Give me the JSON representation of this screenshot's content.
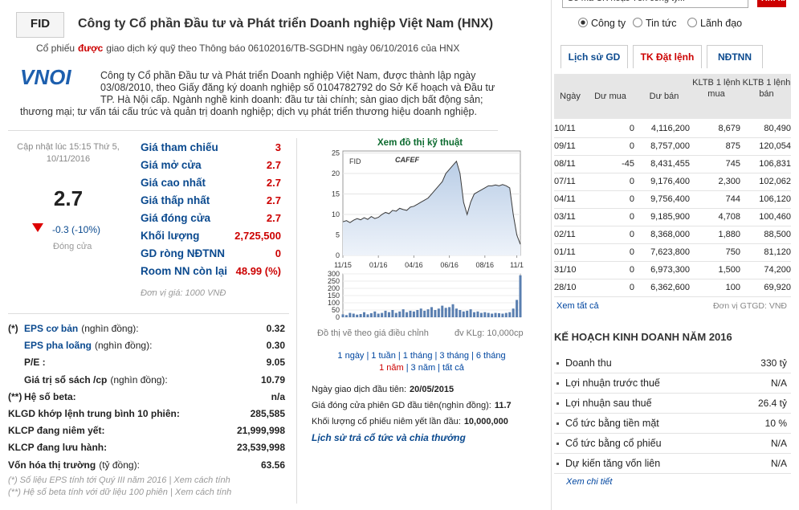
{
  "header": {
    "code": "FID",
    "title": "Công ty Cổ phần Đầu tư và Phát triển Doanh nghiệp Việt Nam (HNX)",
    "subtitle_pre": "Cổ phiếu",
    "subtitle_em": "được",
    "subtitle_post": "giao dịch ký quỹ theo Thông báo 06102016/TB-SGDHN ngày 06/10/2016 của HNX"
  },
  "logo": "VNOI",
  "description": "Công ty Cổ phần Đầu tư và Phát triển Doanh nghiệp Việt Nam, được thành lập ngày 03/08/2010, theo Giấy đăng ký doanh nghiệp số 0104782792 do Sở Kế hoạch và Đầu tư TP. Hà Nội cấp. Ngành nghề kinh doanh: đầu tư tài chính; sàn giao dịch bất động sản; thương mại; tư vấn tái cấu trúc và quản trị doanh nghiệp; dịch vụ phát triển thương hiệu doanh nghiệp.",
  "quote": {
    "updated": "Cập nhật lúc 15:15 Thứ 5, 10/11/2016",
    "price": "2.7",
    "change": "-0.3 (-10%)",
    "close_label": "Đóng cửa"
  },
  "prices": [
    {
      "label": "Giá tham chiếu",
      "value": "3"
    },
    {
      "label": "Giá mở cửa",
      "value": "2.7"
    },
    {
      "label": "Giá cao nhất",
      "value": "2.7"
    },
    {
      "label": "Giá thấp nhất",
      "value": "2.7"
    },
    {
      "label": "Giá đóng cửa",
      "value": "2.7"
    },
    {
      "label": "Khối lượng",
      "value": "2,725,500"
    },
    {
      "label": "GD ròng NĐTNN",
      "value": "0"
    },
    {
      "label": "Room NN còn lại",
      "value": "48.99 (%)"
    }
  ],
  "price_unit": "Đơn vị giá: 1000 VNĐ",
  "fundamentals": [
    {
      "prefix": "(*)",
      "name": "EPS cơ bản",
      "unit": "(nghìn đồng):",
      "value": "0.32",
      "highlight": true
    },
    {
      "name": "EPS pha loãng",
      "unit": "(nghìn đồng):",
      "value": "0.30",
      "highlight": true
    },
    {
      "name": "P/E :",
      "value": "9.05"
    },
    {
      "name": "Giá trị sổ sách /cp",
      "unit": "(nghìn đồng):",
      "value": "10.79"
    },
    {
      "prefix": "(**)",
      "name": "Hệ số beta:",
      "value": "n/a"
    },
    {
      "name": "KLGD khớp lệnh trung bình 10 phiên:",
      "value": "285,585"
    },
    {
      "name": "KLCP đang niêm yết:",
      "value": "21,999,998"
    },
    {
      "name": "KLCP đang lưu hành:",
      "value": "23,539,998"
    },
    {
      "name": "Vốn hóa thị trường",
      "unit": "(tỷ đồng):",
      "value": "63.56"
    }
  ],
  "footnotes": [
    "(*) Số liệu EPS tính tới Quý III năm 2016 | Xem cách tính",
    "(**) Hệ số beta tính với dữ liệu 100 phiên | Xem cách tính"
  ],
  "chart": {
    "link": "Xem đồ thị kỹ thuật",
    "symbol": "FID",
    "brand": "CAFEF",
    "type": "line",
    "x": [
      0,
      1,
      2,
      3,
      4,
      5,
      6,
      7,
      8,
      9,
      10,
      11,
      12,
      13,
      14,
      15,
      16,
      17,
      18,
      19,
      20,
      21,
      22,
      23,
      24,
      25,
      26,
      27,
      28,
      29,
      30,
      31,
      32,
      33,
      34,
      35,
      36,
      37,
      38,
      39,
      40,
      41,
      42,
      43,
      44,
      45,
      46,
      47,
      48,
      49,
      50
    ],
    "values": [
      8.2,
      8.5,
      8,
      8.6,
      9,
      8.7,
      9.2,
      8.8,
      9.5,
      9,
      9.3,
      10,
      10.5,
      10.2,
      11,
      10.8,
      11.5,
      11.2,
      11,
      11.8,
      12,
      12.5,
      13,
      13.5,
      14,
      15,
      16,
      17,
      18,
      20,
      21,
      22,
      23,
      20,
      13,
      10,
      13,
      15,
      15.5,
      16,
      16.5,
      17,
      17,
      17.2,
      17,
      17.3,
      17,
      16.5,
      10,
      5,
      2.7
    ],
    "volume": [
      20,
      15,
      30,
      25,
      18,
      22,
      35,
      20,
      28,
      40,
      25,
      30,
      45,
      35,
      50,
      30,
      40,
      55,
      35,
      45,
      40,
      50,
      60,
      45,
      55,
      70,
      50,
      60,
      80,
      65,
      70,
      90,
      60,
      50,
      40,
      45,
      55,
      35,
      40,
      30,
      35,
      30,
      25,
      30,
      28,
      25,
      30,
      35,
      60,
      120,
      290
    ],
    "xlim": [
      0,
      50
    ],
    "ylim": [
      0,
      25.5
    ],
    "vlim": [
      0,
      300
    ],
    "xticks": [
      {
        "value": 0,
        "label": "11/15"
      },
      {
        "value": 10,
        "label": "01/16"
      },
      {
        "value": 20,
        "label": "04/16"
      },
      {
        "value": 30,
        "label": "06/16"
      },
      {
        "value": 40,
        "label": "08/16"
      },
      {
        "value": 49,
        "label": "11/1"
      }
    ],
    "yticks": [
      0,
      5,
      10,
      15,
      20,
      25
    ],
    "vticks": [
      0,
      50,
      100,
      150,
      200,
      250,
      300
    ],
    "note": "Đồ thị vẽ theo giá điều chỉnh",
    "unit": "đv KLg: 10,000cp"
  },
  "periods": {
    "separator": "|",
    "row1": [
      "1 ngày",
      "1 tuần",
      "1 tháng",
      "3 tháng",
      "6 tháng"
    ],
    "row2": [
      "1 năm",
      "3 năm",
      "tất cả"
    ]
  },
  "listing": [
    {
      "label": "Ngày giao dịch đầu tiên:",
      "value": "20/05/2015"
    },
    {
      "label": "Giá đóng cửa phiên GD đầu tiên(nghìn đồng):",
      "value": "11.7"
    },
    {
      "label": "Khối lượng cổ phiếu niêm yết lần đầu:",
      "value": "10,000,000"
    }
  ],
  "dividend_link": "Lịch sử trả cổ tức và chia thưởng",
  "search": {
    "placeholder": "Gõ mã CK hoặc Tên công ty...",
    "button": "Tìm kiếm",
    "options": [
      "Công ty",
      "Tin tức",
      "Lãnh đạo"
    ]
  },
  "tabs": [
    "Lịch sử GD",
    "TK Đặt lệnh",
    "NĐTNN"
  ],
  "table": {
    "headers": [
      "Ngày",
      "Dư mua",
      "Dư bán",
      "KLTB 1 lệnh mua",
      "KLTB 1 lệnh bán"
    ],
    "rows": [
      [
        "10/11",
        "0",
        "4,116,200",
        "8,679",
        "80,490"
      ],
      [
        "09/11",
        "0",
        "8,757,000",
        "875",
        "120,054"
      ],
      [
        "08/11",
        "-45",
        "8,431,455",
        "745",
        "106,831"
      ],
      [
        "07/11",
        "0",
        "9,176,400",
        "2,300",
        "102,062"
      ],
      [
        "04/11",
        "0",
        "9,756,400",
        "744",
        "106,120"
      ],
      [
        "03/11",
        "0",
        "9,185,900",
        "4,708",
        "100,460"
      ],
      [
        "02/11",
        "0",
        "8,368,000",
        "1,880",
        "88,500"
      ],
      [
        "01/11",
        "0",
        "7,623,800",
        "750",
        "81,120"
      ],
      [
        "31/10",
        "0",
        "6,973,300",
        "1,500",
        "74,200"
      ],
      [
        "28/10",
        "0",
        "6,362,600",
        "100",
        "69,920"
      ]
    ],
    "more": "Xem tất cả",
    "unit": "Đơn vị GTGD: VNĐ"
  },
  "plan": {
    "title": "KẾ HOẠCH KINH DOANH NĂM 2016",
    "rows": [
      {
        "label": "Doanh thu",
        "value": "330 tỷ"
      },
      {
        "label": "Lợi nhuận trước thuế",
        "value": "N/A"
      },
      {
        "label": "Lợi nhuận sau thuế",
        "value": "26.4 tỷ"
      },
      {
        "label": "Cổ tức bằng tiền mặt",
        "value": "10 %"
      },
      {
        "label": "Cổ tức bằng cổ phiếu",
        "value": "N/A"
      },
      {
        "label": "Dự kiến tăng vốn liên",
        "value": "N/A"
      }
    ],
    "more": "Xem chi tiết"
  }
}
